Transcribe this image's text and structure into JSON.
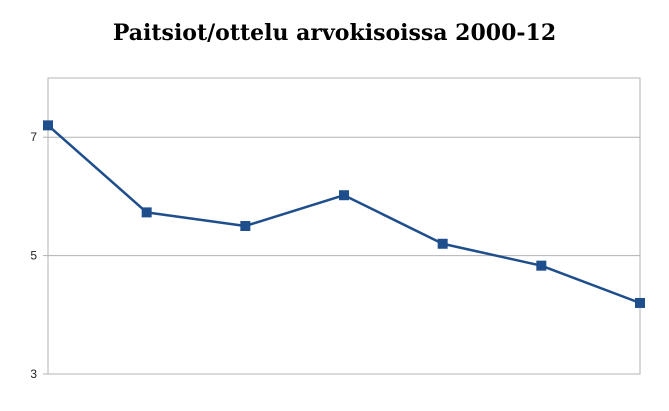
{
  "chart_data": {
    "type": "line",
    "title": "Paitsiot/ottelu arvokisoissa 2000-12",
    "xlabel": "",
    "ylabel": "",
    "x": [
      1,
      2,
      3,
      4,
      5,
      6,
      7
    ],
    "series": [
      {
        "values": [
          7.2,
          5.73,
          5.5,
          6.02,
          5.2,
          4.83,
          4.2
        ]
      }
    ],
    "ylim": [
      3,
      8
    ],
    "yticks": [
      3,
      5,
      7
    ],
    "grid": true,
    "legend": "none",
    "colors": {
      "line": "#1f4e8c",
      "marker": "#1f4e8c",
      "grid": "#b3b3b3",
      "frame": "#b3b3b3"
    }
  }
}
